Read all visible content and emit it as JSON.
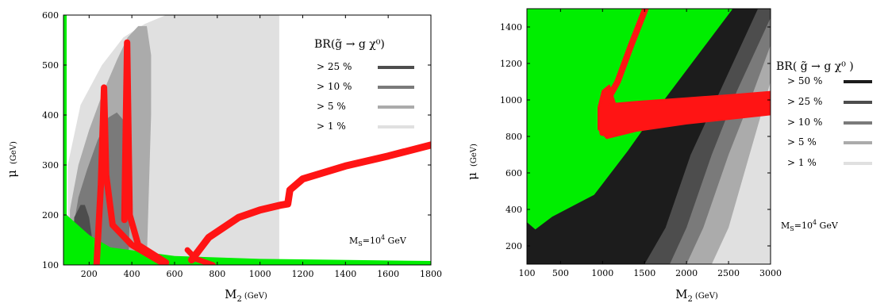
{
  "colors": {
    "green": "#00ee00",
    "red": "#ff1414",
    "black": "#1c1c1c",
    "dark": "#4d4d4d",
    "mid": "#7a7a7a",
    "light": "#ababab",
    "vlight": "#e0e0e0"
  },
  "chart_data": [
    {
      "type": "area",
      "title": "",
      "xlabel": "M",
      "xlabel_sub": "2",
      "xlabel_unit": "(GeV)",
      "ylabel": "μ",
      "ylabel_unit": "(GeV)",
      "xlim": [
        80,
        1800
      ],
      "ylim": [
        100,
        600
      ],
      "xticks": [
        200,
        400,
        600,
        800,
        1000,
        1200,
        1400,
        1600,
        1800
      ],
      "yticks": [
        100,
        200,
        300,
        400,
        500,
        600
      ],
      "legend": {
        "title": "BR(g̃ → g χ⁰)",
        "placement": "top-right",
        "entries": [
          {
            "label": "> 25 %",
            "color": "#4d4d4d"
          },
          {
            "label": "> 10 %",
            "color": "#7a7a7a"
          },
          {
            "label": ">  5 %",
            "color": "#ababab"
          },
          {
            "label": ">  1 %",
            "color": "#e0e0e0"
          }
        ]
      },
      "annotation": {
        "base": "M",
        "sub": "S",
        "mid": "=10",
        "sup": "4",
        "tail": " GeV"
      },
      "regions": [
        {
          "name": "> 1 %",
          "color": "#e0e0e0",
          "points": [
            [
              100,
              110
            ],
            [
              100,
              300
            ],
            [
              160,
              420
            ],
            [
              260,
              500
            ],
            [
              360,
              555
            ],
            [
              460,
              582
            ],
            [
              560,
              600
            ],
            [
              1090,
              600
            ],
            [
              1090,
              110
            ]
          ]
        },
        {
          "name": "> 5 %",
          "color": "#ababab",
          "points": [
            [
              110,
              110
            ],
            [
              110,
              210
            ],
            [
              150,
              300
            ],
            [
              200,
              370
            ],
            [
              260,
              440
            ],
            [
              330,
              510
            ],
            [
              380,
              555
            ],
            [
              430,
              578
            ],
            [
              470,
              578
            ],
            [
              490,
              520
            ],
            [
              490,
              400
            ],
            [
              470,
              110
            ]
          ]
        },
        {
          "name": "> 10 %",
          "color": "#7a7a7a",
          "points": [
            [
              120,
              110
            ],
            [
              120,
              160
            ],
            [
              150,
              235
            ],
            [
              190,
              290
            ],
            [
              240,
              350
            ],
            [
              290,
              395
            ],
            [
              330,
              405
            ],
            [
              360,
              390
            ],
            [
              380,
              300
            ],
            [
              390,
              200
            ],
            [
              385,
              110
            ]
          ]
        },
        {
          "name": "> 25 %",
          "color": "#4d4d4d",
          "points": [
            [
              125,
              110
            ],
            [
              130,
              195
            ],
            [
              160,
              220
            ],
            [
              180,
              220
            ],
            [
              200,
              195
            ],
            [
              215,
              150
            ],
            [
              222,
              110
            ]
          ]
        },
        {
          "name": "excluded (green)",
          "color": "#00ee00",
          "points": [
            [
              80,
              600
            ],
            [
              95,
              600
            ],
            [
              95,
              200
            ],
            [
              200,
              160
            ],
            [
              300,
              135
            ],
            [
              600,
              118
            ],
            [
              1000,
              112
            ],
            [
              1800,
              108
            ],
            [
              1800,
              100
            ],
            [
              80,
              100
            ]
          ]
        }
      ],
      "curves": [
        {
          "name": "red band A",
          "color": "#ff1414",
          "width": 8,
          "points": [
            [
              235,
              100
            ],
            [
              255,
              260
            ],
            [
              270,
              455
            ],
            [
              280,
              280
            ],
            [
              310,
              180
            ],
            [
              400,
              140
            ],
            [
              540,
              105
            ]
          ]
        },
        {
          "name": "red band B",
          "color": "#ff1414",
          "width": 8,
          "points": [
            [
              365,
              190
            ],
            [
              378,
              545
            ],
            [
              390,
              200
            ],
            [
              430,
              140
            ],
            [
              560,
              105
            ]
          ]
        },
        {
          "name": "red band C",
          "color": "#ff1414",
          "width": 9,
          "points": [
            [
              680,
              110
            ],
            [
              760,
              155
            ],
            [
              900,
              195
            ],
            [
              1000,
              210
            ],
            [
              1100,
              220
            ],
            [
              1130,
              222
            ],
            [
              1140,
              250
            ],
            [
              1200,
              272
            ],
            [
              1400,
              298
            ],
            [
              1600,
              318
            ],
            [
              1800,
              340
            ]
          ]
        },
        {
          "name": "red band D",
          "color": "#ff1414",
          "width": 7,
          "points": [
            [
              660,
              130
            ],
            [
              700,
              112
            ],
            [
              780,
              100
            ]
          ]
        }
      ]
    },
    {
      "type": "area",
      "title": "",
      "xlabel": "M",
      "xlabel_sub": "2",
      "xlabel_unit": "(GeV)",
      "ylabel": "μ",
      "ylabel_unit": "(GeV)",
      "xlim": [
        100,
        3000
      ],
      "ylim": [
        100,
        1500
      ],
      "xticks": [
        100,
        500,
        1000,
        1500,
        2000,
        2500,
        3000
      ],
      "yticks": [
        200,
        400,
        600,
        800,
        1000,
        1200,
        1400
      ],
      "legend": {
        "title": "BR( g̃ → g χ⁰ )",
        "placement": "right",
        "entries": [
          {
            "label": "> 50 %",
            "color": "#1c1c1c"
          },
          {
            "label": "> 25 %",
            "color": "#4d4d4d"
          },
          {
            "label": "> 10 %",
            "color": "#7a7a7a"
          },
          {
            "label": ">  5 %",
            "color": "#ababab"
          },
          {
            "label": ">  1 %",
            "color": "#e0e0e0"
          }
        ]
      },
      "annotation": {
        "base": "M",
        "sub": "S",
        "mid": "=10",
        "sup": "4",
        "tail": " GeV"
      },
      "regions": [
        {
          "name": "> 1 %",
          "color": "#e0e0e0",
          "points": [
            [
              100,
              100
            ],
            [
              3000,
              100
            ],
            [
              3000,
              1500
            ],
            [
              100,
              1500
            ]
          ]
        },
        {
          "name": "> 5 %",
          "color": "#ababab",
          "points": [
            [
              100,
              100
            ],
            [
              2300,
              100
            ],
            [
              2500,
              300
            ],
            [
              2750,
              700
            ],
            [
              3000,
              1100
            ],
            [
              3000,
              1500
            ],
            [
              100,
              1500
            ]
          ]
        },
        {
          "name": "> 10 %",
          "color": "#7a7a7a",
          "points": [
            [
              100,
              100
            ],
            [
              2000,
              100
            ],
            [
              2200,
              300
            ],
            [
              2500,
              700
            ],
            [
              2800,
              1050
            ],
            [
              3000,
              1300
            ],
            [
              3000,
              1500
            ],
            [
              100,
              1500
            ]
          ]
        },
        {
          "name": "> 25 %",
          "color": "#4d4d4d",
          "points": [
            [
              100,
              100
            ],
            [
              1800,
              100
            ],
            [
              2000,
              300
            ],
            [
              2300,
              700
            ],
            [
              2600,
              1050
            ],
            [
              3000,
              1450
            ],
            [
              3000,
              1500
            ],
            [
              100,
              1500
            ]
          ]
        },
        {
          "name": "> 50 %",
          "color": "#1c1c1c",
          "points": [
            [
              100,
              100
            ],
            [
              1500,
              100
            ],
            [
              1750,
              300
            ],
            [
              2050,
              700
            ],
            [
              2400,
              1050
            ],
            [
              2850,
              1500
            ],
            [
              100,
              1500
            ]
          ]
        },
        {
          "name": "excluded (green)",
          "color": "#00ee00",
          "points": [
            [
              100,
              1500
            ],
            [
              2550,
              1500
            ],
            [
              1700,
              980
            ],
            [
              1300,
              720
            ],
            [
              900,
              480
            ],
            [
              400,
              360
            ],
            [
              200,
              290
            ],
            [
              100,
              330
            ]
          ]
        }
      ],
      "curves": [
        {
          "name": "red band E",
          "color": "#ff1414",
          "width": 8,
          "points": [
            [
              1510,
              1500
            ],
            [
              1340,
              1300
            ],
            [
              1180,
              1100
            ],
            [
              1000,
              950
            ],
            [
              1000,
              820
            ]
          ]
        }
      ],
      "bands": [
        {
          "name": "red band F",
          "color": "#ff1414",
          "points": [
            [
              950,
              840
            ],
            [
              1050,
              790
            ],
            [
              1400,
              830
            ],
            [
              2000,
              870
            ],
            [
              2600,
              900
            ],
            [
              3000,
              920
            ],
            [
              3000,
              1045
            ],
            [
              2600,
              1030
            ],
            [
              2000,
              1010
            ],
            [
              1400,
              990
            ],
            [
              1150,
              980
            ],
            [
              1080,
              1080
            ],
            [
              1000,
              1050
            ],
            [
              950,
              960
            ]
          ]
        }
      ]
    }
  ]
}
